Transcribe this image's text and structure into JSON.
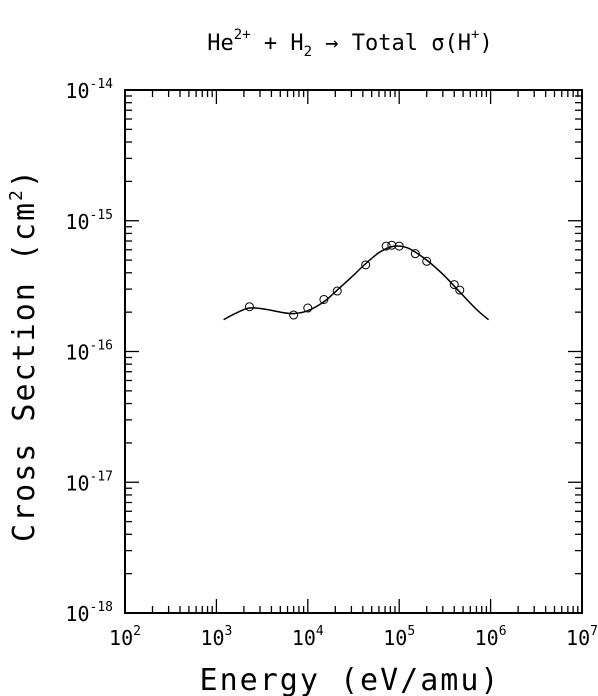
{
  "chart_data": {
    "type": "scatter",
    "title": {
      "parts": [
        "He",
        "2+",
        " + H",
        "2",
        " → Total σ(H",
        "+",
        ")"
      ]
    },
    "xlabel": "Energy (eV/amu)",
    "ylabel": {
      "base": "Cross Section (cm",
      "sup": "2",
      "end": ")"
    },
    "xscale": "log",
    "yscale": "log",
    "xlim": [
      100,
      10000000
    ],
    "ylim": [
      1e-18,
      1e-14
    ],
    "x_ticks": [
      {
        "value": 100,
        "base": "10",
        "exp": "2"
      },
      {
        "value": 1000,
        "base": "10",
        "exp": "3"
      },
      {
        "value": 10000,
        "base": "10",
        "exp": "4"
      },
      {
        "value": 100000,
        "base": "10",
        "exp": "5"
      },
      {
        "value": 1000000,
        "base": "10",
        "exp": "6"
      },
      {
        "value": 10000000,
        "base": "10",
        "exp": "7"
      }
    ],
    "y_ticks": [
      {
        "value": 1e-18,
        "base": "10",
        "exp": "-18"
      },
      {
        "value": 1e-17,
        "base": "10",
        "exp": "-17"
      },
      {
        "value": 1e-16,
        "base": "10",
        "exp": "-16"
      },
      {
        "value": 1e-15,
        "base": "10",
        "exp": "-15"
      },
      {
        "value": 1e-14,
        "base": "10",
        "exp": "-14"
      }
    ],
    "grid": false,
    "series": [
      {
        "kind": "points",
        "marker": "open-circle",
        "points": [
          {
            "x": 2300,
            "y": 2.2e-16
          },
          {
            "x": 7000,
            "y": 1.9e-16
          },
          {
            "x": 10000,
            "y": 2.15e-16
          },
          {
            "x": 15000,
            "y": 2.5e-16
          },
          {
            "x": 21000,
            "y": 2.9e-16
          },
          {
            "x": 43000,
            "y": 4.6e-16
          },
          {
            "x": 72000,
            "y": 6.4e-16
          },
          {
            "x": 83000,
            "y": 6.5e-16
          },
          {
            "x": 100000,
            "y": 6.4e-16
          },
          {
            "x": 150000,
            "y": 5.6e-16
          },
          {
            "x": 200000,
            "y": 4.9e-16
          },
          {
            "x": 400000,
            "y": 3.25e-16
          },
          {
            "x": 460000,
            "y": 2.95e-16
          }
        ]
      },
      {
        "kind": "line",
        "style": "solid",
        "points": [
          {
            "x": 1200,
            "y": 1.75e-16
          },
          {
            "x": 1600,
            "y": 1.95e-16
          },
          {
            "x": 2300,
            "y": 2.15e-16
          },
          {
            "x": 3500,
            "y": 2.1e-16
          },
          {
            "x": 5000,
            "y": 2e-16
          },
          {
            "x": 7000,
            "y": 1.95e-16
          },
          {
            "x": 10000,
            "y": 2.05e-16
          },
          {
            "x": 15000,
            "y": 2.4e-16
          },
          {
            "x": 21000,
            "y": 2.95e-16
          },
          {
            "x": 30000,
            "y": 3.7e-16
          },
          {
            "x": 43000,
            "y": 4.7e-16
          },
          {
            "x": 60000,
            "y": 5.7e-16
          },
          {
            "x": 80000,
            "y": 6.3e-16
          },
          {
            "x": 100000,
            "y": 6.4e-16
          },
          {
            "x": 130000,
            "y": 6.1e-16
          },
          {
            "x": 200000,
            "y": 5e-16
          },
          {
            "x": 300000,
            "y": 3.9e-16
          },
          {
            "x": 460000,
            "y": 2.85e-16
          },
          {
            "x": 700000,
            "y": 2.1e-16
          },
          {
            "x": 950000,
            "y": 1.75e-16
          }
        ]
      }
    ]
  }
}
